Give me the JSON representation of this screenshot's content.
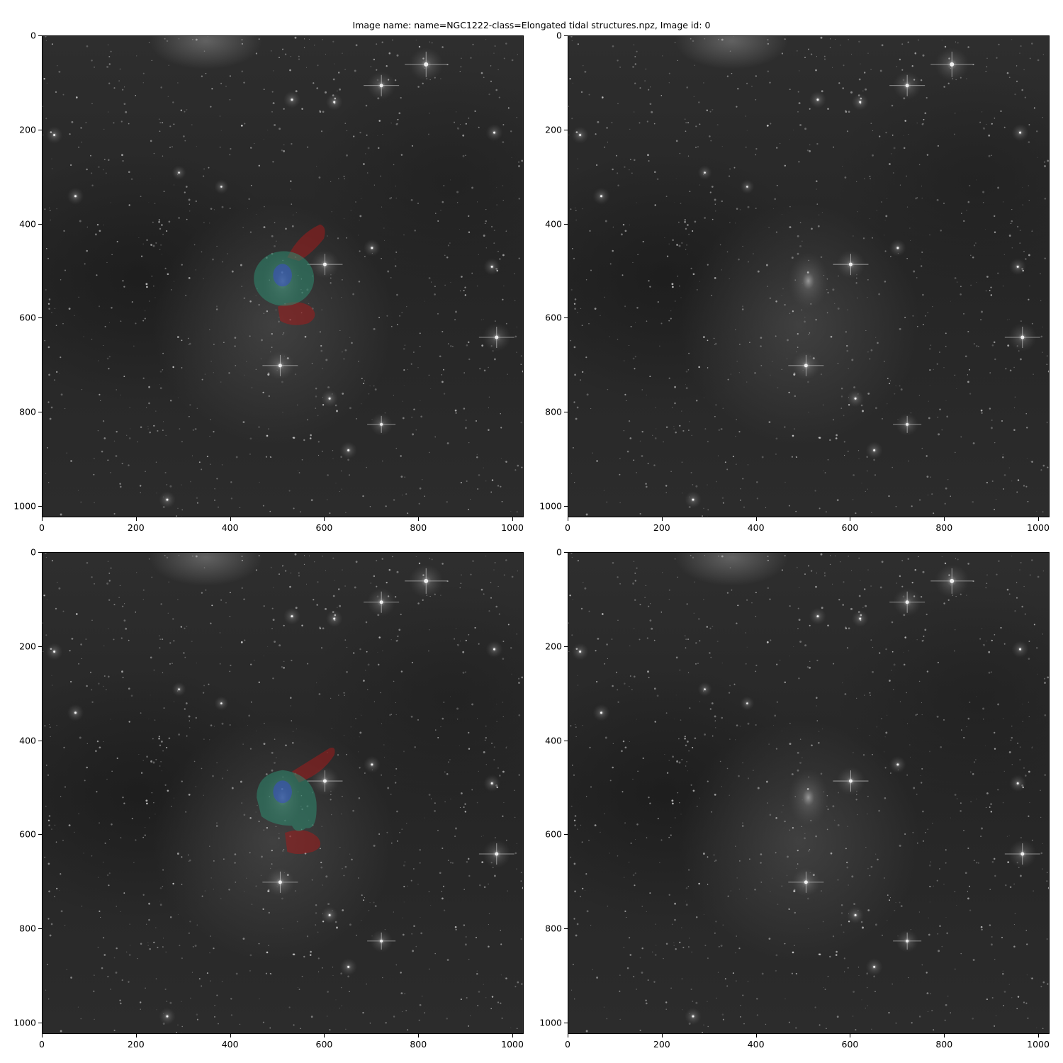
{
  "figure": {
    "title": "Image name: name=NGC1222-class=Elongated tidal structures.npz, Image id: 0"
  },
  "axes": {
    "x_ticks": [
      "0",
      "200",
      "400",
      "600",
      "800",
      "1000"
    ],
    "y_ticks": [
      "0",
      "200",
      "400",
      "600",
      "800",
      "1000"
    ],
    "x_range": [
      0,
      1024
    ],
    "y_range": [
      1024,
      0
    ]
  },
  "panels": [
    {
      "id": "top-left",
      "overlay": true,
      "variant": "a"
    },
    {
      "id": "top-right",
      "overlay": false,
      "variant": "a"
    },
    {
      "id": "bottom-left",
      "overlay": true,
      "variant": "b"
    },
    {
      "id": "bottom-right",
      "overlay": false,
      "variant": "b"
    }
  ],
  "overlay_colors": {
    "host": "#2e8b6f",
    "core": "#3a4fbf",
    "tidal": "#a11c1c"
  }
}
